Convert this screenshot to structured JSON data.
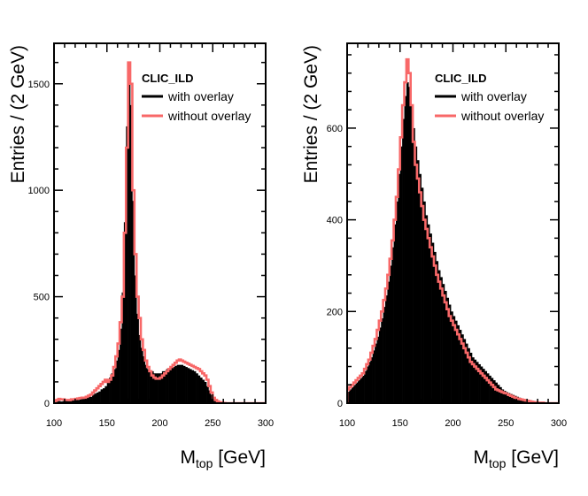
{
  "chart_data": [
    {
      "type": "histogram",
      "panel": "left",
      "title": "",
      "xlabel_main": "M",
      "xlabel_sub": "top",
      "xlabel_unit": "[GeV]",
      "ylabel": "Entries / (2 GeV)",
      "xlim": [
        100,
        300
      ],
      "ylim": [
        0,
        1690
      ],
      "bin_width": 2,
      "xticks": [
        100,
        150,
        200,
        250,
        300
      ],
      "yticks": [
        0,
        500,
        1000,
        1500
      ],
      "xtick_labels": [
        "100",
        "150",
        "200",
        "250",
        "300"
      ],
      "ytick_labels": [
        "0",
        "500",
        "1000",
        "1500"
      ],
      "legend": {
        "title": "CLIC_ILD",
        "entries": [
          "with overlay",
          "without overlay"
        ],
        "position": "top-right"
      },
      "series": [
        {
          "name": "with overlay",
          "style": "filled",
          "color": "#000000",
          "values": [
            5,
            8,
            10,
            8,
            10,
            12,
            10,
            10,
            15,
            12,
            15,
            15,
            18,
            20,
            22,
            25,
            30,
            30,
            40,
            45,
            50,
            55,
            65,
            70,
            80,
            100,
            120,
            140,
            160,
            200,
            250,
            350,
            520,
            850,
            1300,
            1600,
            1400,
            950,
            600,
            420,
            320,
            260,
            220,
            180,
            160,
            150,
            150,
            140,
            140,
            140,
            140,
            150,
            150,
            160,
            160,
            170,
            170,
            175,
            180,
            180,
            180,
            175,
            170,
            165,
            160,
            155,
            150,
            140,
            130,
            120,
            110,
            100,
            80,
            60,
            40,
            20,
            10,
            5,
            3,
            2,
            1,
            0,
            0,
            0,
            0,
            0,
            0,
            0,
            0,
            0,
            0,
            0,
            0,
            0,
            0,
            0,
            0,
            0,
            0,
            0
          ]
        },
        {
          "name": "without overlay",
          "style": "step",
          "color": "#f86868",
          "values": [
            10,
            15,
            20,
            18,
            18,
            15,
            15,
            14,
            18,
            18,
            20,
            22,
            24,
            26,
            25,
            30,
            35,
            40,
            50,
            60,
            70,
            80,
            90,
            100,
            110,
            100,
            110,
            130,
            170,
            220,
            280,
            380,
            500,
            800,
            1200,
            1600,
            1500,
            1000,
            700,
            500,
            400,
            300,
            250,
            200,
            170,
            150,
            130,
            120,
            115,
            115,
            120,
            130,
            140,
            150,
            160,
            170,
            180,
            190,
            200,
            205,
            200,
            195,
            190,
            185,
            180,
            175,
            170,
            165,
            160,
            150,
            140,
            130,
            110,
            80,
            50,
            25,
            15,
            8,
            4,
            2,
            1,
            0,
            0,
            0,
            0,
            0,
            0,
            0,
            0,
            0,
            0,
            0,
            0,
            0,
            0,
            0,
            0,
            0,
            0,
            0
          ]
        }
      ]
    },
    {
      "type": "histogram",
      "panel": "right",
      "title": "",
      "xlabel_main": "M",
      "xlabel_sub": "top",
      "xlabel_unit": "[GeV]",
      "ylabel": "Entries / (2 GeV)",
      "xlim": [
        100,
        300
      ],
      "ylim": [
        0,
        785
      ],
      "bin_width": 2,
      "xticks": [
        100,
        150,
        200,
        250,
        300
      ],
      "yticks": [
        0,
        200,
        400,
        600
      ],
      "xtick_labels": [
        "100",
        "150",
        "200",
        "250",
        "300"
      ],
      "ytick_labels": [
        "0",
        "200",
        "400",
        "600"
      ],
      "legend": {
        "title": "CLIC_ILD",
        "entries": [
          "with overlay",
          "without overlay"
        ],
        "position": "top-right"
      },
      "series": [
        {
          "name": "with overlay",
          "style": "filled",
          "color": "#000000",
          "values": [
            25,
            30,
            35,
            40,
            45,
            50,
            55,
            60,
            70,
            80,
            90,
            100,
            115,
            130,
            145,
            165,
            185,
            210,
            235,
            265,
            300,
            340,
            390,
            440,
            500,
            560,
            620,
            670,
            700,
            690,
            650,
            600,
            560,
            530,
            500,
            470,
            440,
            410,
            390,
            370,
            350,
            330,
            310,
            290,
            275,
            260,
            245,
            230,
            215,
            200,
            190,
            180,
            170,
            160,
            150,
            140,
            130,
            120,
            110,
            100,
            95,
            90,
            85,
            80,
            75,
            70,
            65,
            60,
            55,
            50,
            45,
            40,
            35,
            30,
            27,
            24,
            22,
            20,
            18,
            16,
            14,
            12,
            10,
            9,
            8,
            7,
            6,
            5,
            4,
            3,
            3,
            2,
            2,
            1,
            1,
            1,
            0,
            0,
            0,
            0
          ]
        },
        {
          "name": "without overlay",
          "style": "step",
          "color": "#f86868",
          "values": [
            30,
            35,
            40,
            45,
            50,
            55,
            60,
            65,
            75,
            85,
            95,
            110,
            125,
            140,
            160,
            180,
            200,
            225,
            250,
            280,
            315,
            355,
            400,
            450,
            510,
            580,
            650,
            700,
            750,
            720,
            650,
            570,
            520,
            490,
            460,
            430,
            400,
            380,
            360,
            340,
            320,
            300,
            280,
            265,
            250,
            235,
            220,
            205,
            190,
            180,
            170,
            160,
            150,
            140,
            130,
            120,
            110,
            100,
            90,
            85,
            80,
            75,
            70,
            65,
            60,
            55,
            50,
            45,
            40,
            35,
            30,
            28,
            26,
            24,
            22,
            20,
            18,
            16,
            14,
            12,
            10,
            9,
            8,
            7,
            6,
            5,
            4,
            3,
            2,
            2,
            1,
            1,
            1,
            0,
            0,
            0,
            0,
            0,
            0,
            0
          ]
        }
      ]
    }
  ]
}
